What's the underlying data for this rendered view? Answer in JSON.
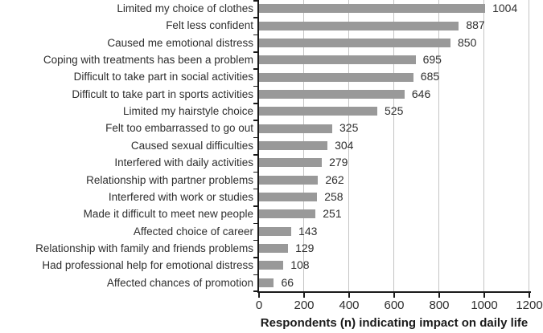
{
  "chart_data": {
    "type": "bar",
    "orientation": "horizontal",
    "title": "",
    "xlabel": "Respondents (n) indicating impact on daily life",
    "ylabel": "",
    "xlim": [
      0,
      1200
    ],
    "xticks": [
      0,
      200,
      400,
      600,
      800,
      1000,
      1200
    ],
    "grid": true,
    "legend": "none",
    "categories": [
      "Limited my choice of clothes",
      "Felt less confident",
      "Caused me emotional distress",
      "Coping with treatments has been a problem",
      "Difficult to take part in social activities",
      "Difficult to take part in sports activities",
      "Limited my hairstyle choice",
      "Felt too embarrassed to go out",
      "Caused sexual difficulties",
      "Interfered with daily activities",
      "Relationship with partner problems",
      "Interfered with work or studies",
      "Made it difficult to meet new people",
      "Affected choice of career",
      "Relationship with family and friends problems",
      "Had professional help for emotional distress",
      "Affected chances of promotion"
    ],
    "values": [
      1004,
      887,
      850,
      695,
      685,
      646,
      525,
      325,
      304,
      279,
      262,
      258,
      251,
      143,
      129,
      108,
      66
    ],
    "colors": {
      "bar": "#999999",
      "gridline": "#c4c4c4",
      "axis": "#1a1a1a",
      "text": "#2e2e2e"
    }
  }
}
